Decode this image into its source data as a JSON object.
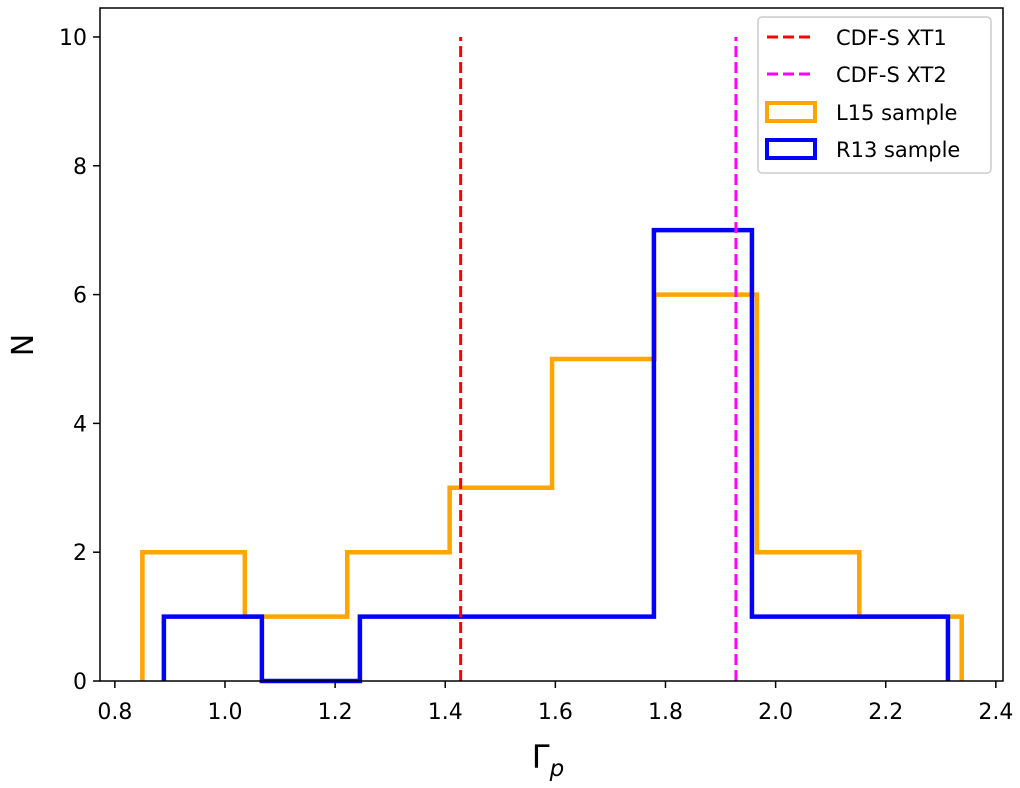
{
  "chart_data": {
    "type": "histogram-step",
    "title": "",
    "xlabel": "Γ",
    "xlabel_sub": "p",
    "ylabel": "N",
    "xlim": [
      0.773,
      2.413
    ],
    "ylim": [
      0,
      10.45
    ],
    "xticks": [
      0.8,
      1.0,
      1.2,
      1.4,
      1.6,
      1.8,
      2.0,
      2.2,
      2.4
    ],
    "xtick_labels": [
      "0.8",
      "1.0",
      "1.2",
      "1.4",
      "1.6",
      "1.8",
      "2.0",
      "2.2",
      "2.4"
    ],
    "yticks": [
      0,
      2,
      4,
      6,
      8,
      10
    ],
    "ytick_labels": [
      "0",
      "2",
      "4",
      "6",
      "8",
      "10"
    ],
    "grid": false,
    "legend_position": "top-right",
    "series": [
      {
        "name": "L15 sample",
        "kind": "step",
        "color": "#ffa500",
        "bin_edges": [
          0.85,
          1.036,
          1.222,
          1.408,
          1.594,
          1.78,
          1.966,
          2.152,
          2.338
        ],
        "counts": [
          2,
          1,
          2,
          3,
          5,
          6,
          2,
          1
        ]
      },
      {
        "name": "R13 sample",
        "kind": "step",
        "color": "#0000ff",
        "bin_edges": [
          0.889,
          1.067,
          1.245,
          1.423,
          1.601,
          1.779,
          1.957,
          2.135,
          2.313
        ],
        "counts": [
          1,
          0,
          1,
          1,
          1,
          7,
          1,
          1
        ]
      }
    ],
    "vlines": [
      {
        "name": "CDF-S XT1",
        "x": 1.428,
        "ymin": 0,
        "ymax": 10,
        "color": "#ff0000",
        "style": "dashed"
      },
      {
        "name": "CDF-S XT2",
        "x": 1.928,
        "ymin": 0,
        "ymax": 10,
        "color": "#ff00ff",
        "style": "dashed"
      }
    ],
    "legend": [
      "CDF-S XT1",
      "CDF-S XT2",
      "L15 sample",
      "R13 sample"
    ]
  }
}
